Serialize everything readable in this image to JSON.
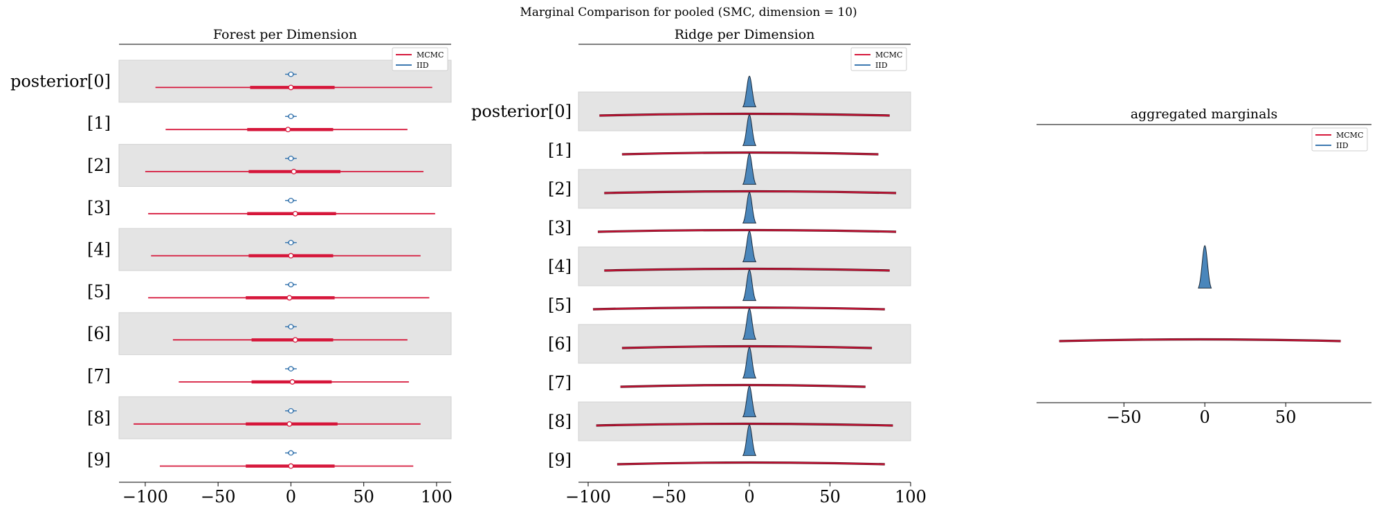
{
  "figure": {
    "suptitle": "Marginal Comparison for pooled (SMC, dimension = 10)"
  },
  "colors": {
    "mcmc": "#d6163a",
    "iid": "#3b78b0",
    "band": "#e4e4e4",
    "iid_fill": "#4a86bb",
    "iid_edge": "#1a2a3a"
  },
  "chart_data": [
    {
      "type": "forest",
      "title": "Forest per Dimension",
      "xlim": [
        -118,
        110
      ],
      "xticks": [
        -100,
        -50,
        0,
        50,
        100
      ],
      "xtick_labels": [
        "−100",
        "−50",
        "0",
        "50",
        "100"
      ],
      "grid": false,
      "legend": {
        "placement": "top-right",
        "entries": [
          "MCMC",
          "IID"
        ]
      },
      "categories": [
        "posterior[0]",
        "[1]",
        "[2]",
        "[3]",
        "[4]",
        "[5]",
        "[6]",
        "[7]",
        "[8]",
        "[9]"
      ],
      "series": [
        {
          "name": "MCMC",
          "rows": [
            {
              "low": -93,
              "q1": -28,
              "median": 0,
              "q3": 30,
              "high": 97
            },
            {
              "low": -86,
              "q1": -30,
              "median": -2,
              "q3": 29,
              "high": 80
            },
            {
              "low": -100,
              "q1": -29,
              "median": 2,
              "q3": 34,
              "high": 91
            },
            {
              "low": -98,
              "q1": -30,
              "median": 3,
              "q3": 31,
              "high": 99
            },
            {
              "low": -96,
              "q1": -29,
              "median": 0,
              "q3": 29,
              "high": 89
            },
            {
              "low": -98,
              "q1": -31,
              "median": -1,
              "q3": 30,
              "high": 95
            },
            {
              "low": -81,
              "q1": -27,
              "median": 3,
              "q3": 29,
              "high": 80
            },
            {
              "low": -77,
              "q1": -27,
              "median": 1,
              "q3": 28,
              "high": 81
            },
            {
              "low": -108,
              "q1": -31,
              "median": -1,
              "q3": 32,
              "high": 89
            },
            {
              "low": -90,
              "q1": -31,
              "median": 0,
              "q3": 30,
              "high": 84
            }
          ]
        },
        {
          "name": "IID",
          "rows": [
            {
              "low": -4,
              "q1": -2,
              "median": 0,
              "q3": 2,
              "high": 4
            },
            {
              "low": -4,
              "q1": -2,
              "median": 0,
              "q3": 2,
              "high": 4
            },
            {
              "low": -4,
              "q1": -2,
              "median": 0,
              "q3": 2,
              "high": 4
            },
            {
              "low": -4,
              "q1": -2,
              "median": 0,
              "q3": 2,
              "high": 4
            },
            {
              "low": -4,
              "q1": -2,
              "median": 0,
              "q3": 2,
              "high": 4
            },
            {
              "low": -4,
              "q1": -2,
              "median": 0,
              "q3": 2,
              "high": 4
            },
            {
              "low": -4,
              "q1": -2,
              "median": 0,
              "q3": 2,
              "high": 4
            },
            {
              "low": -4,
              "q1": -2,
              "median": 0,
              "q3": 2,
              "high": 4
            },
            {
              "low": -4,
              "q1": -2,
              "median": 0,
              "q3": 2,
              "high": 4
            },
            {
              "low": -4,
              "q1": -2,
              "median": 0,
              "q3": 2,
              "high": 4
            }
          ]
        }
      ]
    },
    {
      "type": "ridge",
      "title": "Ridge per Dimension",
      "xlim": [
        -106,
        100
      ],
      "xticks": [
        -100,
        -50,
        0,
        50,
        100
      ],
      "xtick_labels": [
        "−100",
        "−50",
        "0",
        "50",
        "100"
      ],
      "grid": false,
      "legend": {
        "placement": "top-right",
        "entries": [
          "MCMC",
          "IID"
        ]
      },
      "categories": [
        "posterior[0]",
        "[1]",
        "[2]",
        "[3]",
        "[4]",
        "[5]",
        "[6]",
        "[7]",
        "[8]",
        "[9]"
      ],
      "series": [
        {
          "name": "MCMC",
          "ranges": [
            [
              -93,
              87
            ],
            [
              -79,
              80
            ],
            [
              -90,
              91
            ],
            [
              -94,
              91
            ],
            [
              -90,
              87
            ],
            [
              -97,
              84
            ],
            [
              -79,
              76
            ],
            [
              -80,
              72
            ],
            [
              -95,
              89
            ],
            [
              -82,
              84
            ]
          ]
        },
        {
          "name": "IID",
          "center": 0,
          "half_width": 4
        }
      ]
    },
    {
      "type": "density",
      "title": "aggregated marginals",
      "xlim": [
        -104,
        103
      ],
      "xticks": [
        -50,
        0,
        50
      ],
      "xtick_labels": [
        "−50",
        "0",
        "50"
      ],
      "grid": false,
      "legend": {
        "placement": "top-right",
        "entries": [
          "MCMC",
          "IID"
        ]
      },
      "series": [
        {
          "name": "MCMC",
          "range": [
            -90,
            84
          ]
        },
        {
          "name": "IID",
          "center": 0,
          "half_width": 4
        }
      ]
    }
  ]
}
